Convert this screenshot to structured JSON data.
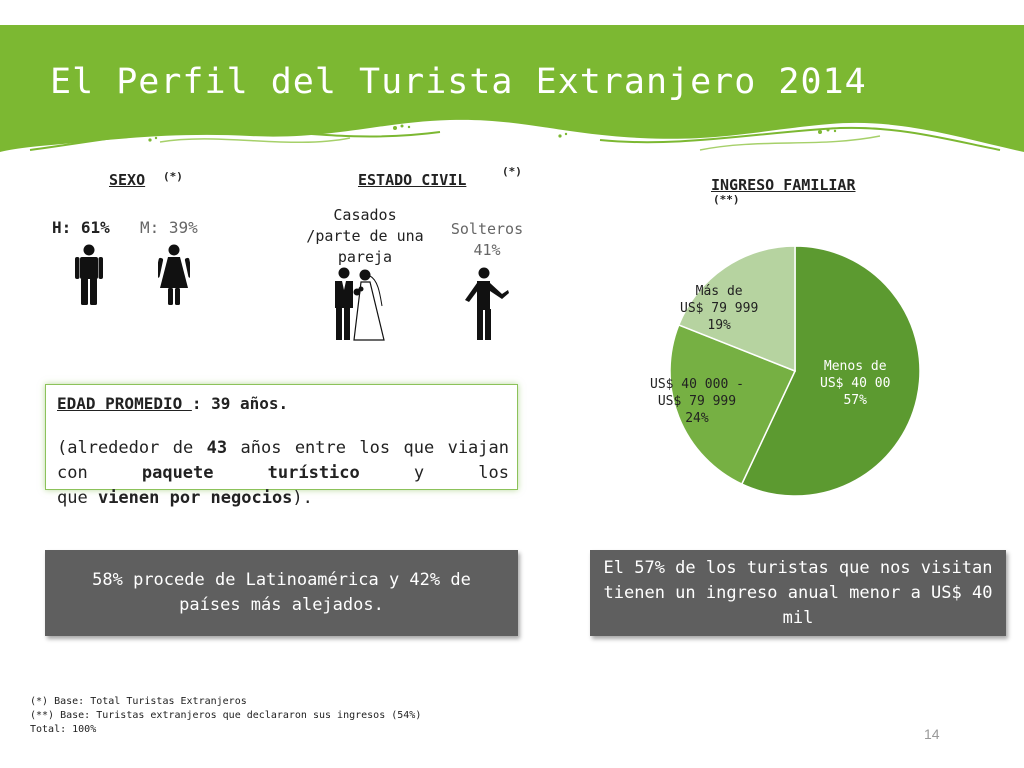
{
  "title": "El Perfil del Turista Extranjero 2014",
  "colors": {
    "banner": "#7cb832",
    "accent_dark": "#5c9a30",
    "accent_mid": "#76b043",
    "accent_light": "#b6d3a0",
    "grey_box": "#5f5f5f"
  },
  "sexo": {
    "heading": "SEXO",
    "marker": "(*)",
    "hombres": "H: 61%",
    "mujeres": "M: 39%"
  },
  "estado_civil": {
    "heading": "ESTADO CIVIL",
    "marker": "(*)",
    "casados": [
      "Casados",
      "/parte de una",
      "pareja"
    ],
    "solteros": [
      "Solteros",
      "41%"
    ]
  },
  "ingreso": {
    "heading": "INGRESO FAMILIAR",
    "marker": "(**)"
  },
  "chart_data": {
    "type": "pie",
    "title": "INGRESO FAMILIAR",
    "slices": [
      {
        "label": [
          "Menos de",
          "US$ 40 00",
          "57%"
        ],
        "value": 57,
        "color": "#5c9a30"
      },
      {
        "label": [
          "US$ 40 000 -",
          "US$ 79 999",
          "24%"
        ],
        "value": 24,
        "color": "#76b043"
      },
      {
        "label": [
          "Más de",
          "US$ 79 999",
          "19%"
        ],
        "value": 19,
        "color": "#b6d3a0"
      }
    ],
    "start_angle_deg": 0,
    "direction": "clockwise"
  },
  "edad": {
    "title": "EDAD PROMEDIO ",
    "value": ": 39 años.",
    "line_a": "(alrededor de ",
    "num": "43",
    "line_b": " años entre los que viajan con ",
    "paquete": "paquete turístico",
    "line_c": " y los",
    "line_d": "que ",
    "negocios": "vienen por negocios",
    "line_e": ")."
  },
  "box_left": "58% procede de Latinoamérica y 42% de países más alejados.",
  "box_right": "El  57% de los turistas que nos visitan tienen un ingreso anual menor a  US$ 40 mil",
  "footnotes": [
    "(*)   Base: Total Turistas Extranjeros",
    "(**) Base: Turistas extranjeros que declararon sus ingresos (54%)",
    "Total: 100%"
  ],
  "page_number": "14"
}
